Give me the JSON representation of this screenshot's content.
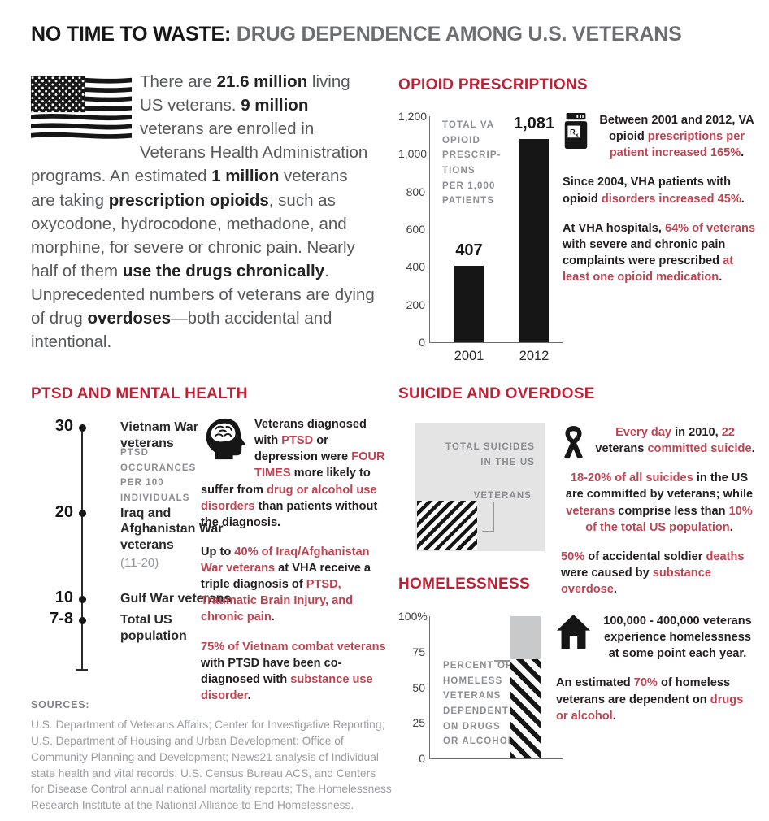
{
  "page": {
    "title_strong": "NO TIME TO WASTE:",
    "title_rest": " DRUG DEPENDENCE AMONG U.S. VETERANS"
  },
  "intro": {
    "flag_icon": "us-flag",
    "segments": [
      {
        "t": "There are "
      },
      {
        "t": "21.6 million",
        "s": "b"
      },
      {
        "t": " living US veterans. "
      },
      {
        "t": "9 million",
        "s": "b"
      },
      {
        "t": " veterans are enrolled in Veterans Health Administration programs. An estimated "
      },
      {
        "t": "1 million",
        "s": "b"
      },
      {
        "t": " veterans are taking "
      },
      {
        "t": "prescription opioids",
        "s": "b"
      },
      {
        "t": ", such as oxycodone, hydrocodone, methadone, and morphine, for severe or chronic pain. Nearly half of them "
      },
      {
        "t": "use the drugs chronically",
        "s": "b"
      },
      {
        "t": ". Unprecedented numbers of veterans are dying of drug "
      },
      {
        "t": "overdoses",
        "s": "b"
      },
      {
        "t": "—both accidental and intentional."
      }
    ]
  },
  "opioid": {
    "heading": "OPIOID PRESCRIPTIONS",
    "icon": "pill-bottle-rx",
    "rx_r": "R",
    "rx_x": "x",
    "paragraphs": [
      [
        {
          "t": "Between 2001 and 2012, VA opioid "
        },
        {
          "t": "prescriptions per patient increased 165%",
          "s": "r"
        },
        {
          "t": "."
        }
      ],
      [
        {
          "t": "Since 2004, VHA patients with opioid "
        },
        {
          "t": "disorders increased 45%",
          "s": "r"
        },
        {
          "t": "."
        }
      ],
      [
        {
          "t": "At VHA hospitals, "
        },
        {
          "t": "64% of veterans",
          "s": "r"
        },
        {
          "t": " with severe and chronic pain complaints were prescribed "
        },
        {
          "t": "at least one opioid medication",
          "s": "r"
        },
        {
          "t": "."
        }
      ]
    ]
  },
  "ptsd": {
    "heading": "PTSD AND MENTAL HEALTH",
    "icon": "brain-head",
    "paragraphs": [
      [
        {
          "t": "Veterans diagnosed with "
        },
        {
          "t": "PTSD",
          "s": "r"
        },
        {
          "t": " or depression were "
        },
        {
          "t": "FOUR TIMES",
          "s": "r"
        },
        {
          "t": " more likely to suffer from "
        },
        {
          "t": "drug or alcohol use disorders",
          "s": "r"
        },
        {
          "t": " than patients without the diagnosis."
        }
      ],
      [
        {
          "t": "Up to "
        },
        {
          "t": "40% of Iraq/Afghanistan War veterans",
          "s": "r"
        },
        {
          "t": " at VHA receive a triple diagnosis of "
        },
        {
          "t": "PTSD, Traumatic Brain Injury, and chronic pain",
          "s": "r"
        },
        {
          "t": "."
        }
      ],
      [
        {
          "t": "75% of Vietnam combat veterans",
          "s": "r"
        },
        {
          "t": " with PTSD have been co-diagnosed with "
        },
        {
          "t": "substance use disorder",
          "s": "r"
        },
        {
          "t": "."
        }
      ]
    ]
  },
  "suicide": {
    "heading": "SUICIDE AND OVERDOSE",
    "icon": "awareness-ribbon",
    "paragraphs": [
      [
        {
          "t": "Every day",
          "s": "r"
        },
        {
          "t": " in 2010, "
        },
        {
          "t": "22",
          "s": "r"
        },
        {
          "t": " veterans "
        },
        {
          "t": "committed suicide",
          "s": "r"
        },
        {
          "t": "."
        }
      ],
      [
        {
          "t": "18-20% of all suicides",
          "s": "r"
        },
        {
          "t": " in the US are committed by veterans; while "
        },
        {
          "t": "veterans",
          "s": "r"
        },
        {
          "t": " comprise less than "
        },
        {
          "t": "10% of the total US population",
          "s": "r"
        },
        {
          "t": "."
        }
      ],
      [
        {
          "t": "50%",
          "s": "r"
        },
        {
          "t": " of accidental soldier "
        },
        {
          "t": "deaths",
          "s": "r"
        },
        {
          "t": " were caused by "
        },
        {
          "t": "substance overdose",
          "s": "r"
        },
        {
          "t": "."
        }
      ]
    ]
  },
  "homeless": {
    "heading": "HOMELESSNESS",
    "icon": "house",
    "paragraphs": [
      [
        {
          "t": "100,000 - 400,000 veterans experience homelessness at some point each year."
        }
      ],
      [
        {
          "t": "An estimated "
        },
        {
          "t": "70%",
          "s": "r"
        },
        {
          "t": " of homeless veterans are dependent on "
        },
        {
          "t": "drugs or alcohol",
          "s": "r"
        },
        {
          "t": "."
        }
      ]
    ]
  },
  "sources": {
    "label": "SOURCES:",
    "text": "U.S. Department of Veterans Affairs; Center for Investigative Reporting; U.S. Department of Housing and Urban Development: Office of Community Planning and Development; News21 analysis of Individual state health and vital records, U.S. Census Bureau ACS, and Centers for Disease Control annual national mortality reports; The Homelessness Research Institute at the National Alliance to End Homelessness."
  },
  "colors": {
    "heading_red": "#be2136",
    "inline_red": "#be4452",
    "bar_black": "#161616",
    "square_gray": "#e4e4e5",
    "bar_top_gray": "#c8c9cb",
    "caption_gray": "#8b8d90",
    "body_gray": "#57585a"
  },
  "chart_data": [
    {
      "id": "opioid-bar",
      "type": "bar",
      "title": "OPIOID PRESCRIPTIONS",
      "ylabel": "TOTAL VA\nOPIOID\nPRESCRIP-\nTIONS\nPER 1,000\nPATIENTS",
      "categories": [
        "2001",
        "2012"
      ],
      "values": [
        407,
        1081
      ],
      "value_labels": [
        "407",
        "1,081"
      ],
      "ylim": [
        0,
        1200
      ],
      "yticks": [
        {
          "v": 1200,
          "label": "1,200"
        },
        {
          "v": 1000,
          "label": "1,000"
        },
        {
          "v": 800,
          "label": "800"
        },
        {
          "v": 600,
          "label": "600"
        },
        {
          "v": 400,
          "label": "400"
        },
        {
          "v": 200,
          "label": "200"
        },
        {
          "v": 0,
          "label": "0"
        }
      ],
      "grid": false,
      "legend": "none"
    },
    {
      "id": "ptsd-scale",
      "type": "scatter",
      "title": "PTSD AND MENTAL HEALTH",
      "axis_label": "PTSD\nOCCURANCES\nPER 100\nINDIVIDUALS",
      "ylim": [
        0,
        30
      ],
      "points": [
        {
          "value": 30,
          "tick": "30",
          "label": "Vietnam War veterans",
          "note": ""
        },
        {
          "value": 20,
          "tick": "20",
          "label": "Iraq and Afghanistan War veterans",
          "note": "(11-20)"
        },
        {
          "value": 10,
          "tick": "10",
          "label": "Gulf War veterans",
          "note": ""
        },
        {
          "value": 7.5,
          "tick": "7-8",
          "label": "Total US population",
          "note": ""
        }
      ]
    },
    {
      "id": "suicide-square",
      "type": "area",
      "outer_label": "TOTAL SUICIDES\nIN THE US",
      "inner_label": "VETERANS",
      "inner_share": "18-20%"
    },
    {
      "id": "homeless-bar",
      "type": "bar",
      "title": "HOMELESSNESS",
      "label": "PERCENT OF\nHOMELESS\nVETERANS\nDEPENDENT\nON DRUGS\nOR ALCOHOL",
      "value": 70,
      "ylim": [
        0,
        100
      ],
      "yticks": [
        {
          "v": 100,
          "label": "100%"
        },
        {
          "v": 75,
          "label": "75"
        },
        {
          "v": 50,
          "label": "50"
        },
        {
          "v": 25,
          "label": "25"
        },
        {
          "v": 0,
          "label": "0"
        }
      ]
    }
  ]
}
